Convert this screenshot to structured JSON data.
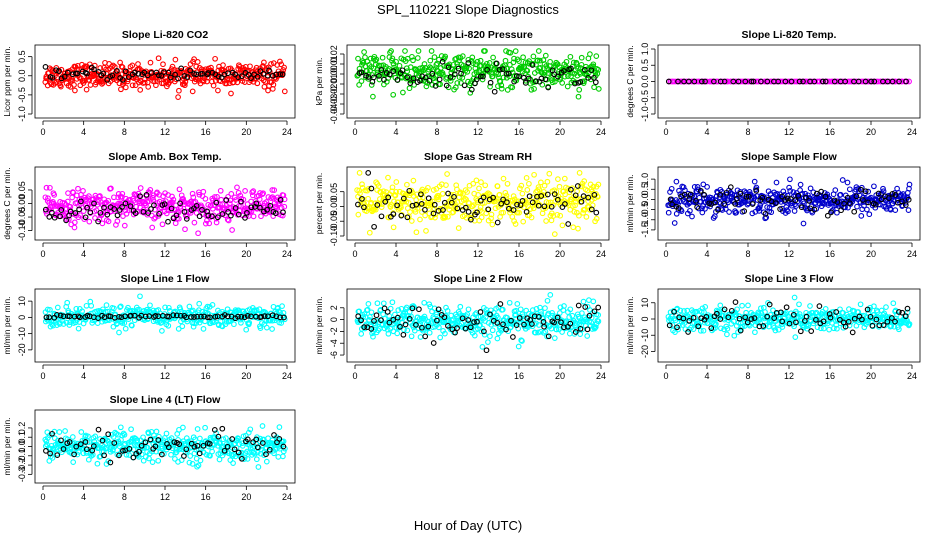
{
  "figure": {
    "title": "SPL_110221  Slope Diagnostics",
    "xlabel": "Hour of Day (UTC)"
  },
  "chart_data": [
    {
      "type": "scatter",
      "title": "Slope Li-820 CO2",
      "ylabel": "Licor ppm per min.",
      "xlim": [
        0,
        24
      ],
      "ylim": [
        -1,
        0.7
      ],
      "xticks": [
        0,
        4,
        8,
        12,
        16,
        20,
        24
      ],
      "yticks": [
        -1.0,
        -0.5,
        0.0,
        0.5
      ],
      "yticklabels": [
        "-1.0",
        "-0.5",
        "0.0",
        "0.5"
      ],
      "series": [
        {
          "name": "",
          "color": "#ff0000",
          "n": 420,
          "center": 0.0,
          "spread": 0.16
        },
        {
          "name": "",
          "color": "#000000",
          "n": 75,
          "center": 0.04,
          "spread": 0.08
        }
      ]
    },
    {
      "type": "scatter",
      "title": "Slope Li-820 Pressure",
      "ylabel": "kPa per min.",
      "xlim": [
        0,
        24
      ],
      "ylim": [
        -0.04,
        0.025
      ],
      "xticks": [
        0,
        4,
        8,
        12,
        16,
        20,
        24
      ],
      "yticks": [
        -0.04,
        -0.03,
        -0.02,
        -0.01,
        0.0,
        0.01,
        0.02
      ],
      "yticklabels": [
        "-0.04",
        "-0.03",
        "-0.02",
        "-0.01",
        "0.00",
        "0.01",
        "0.02"
      ],
      "series": [
        {
          "name": "",
          "color": "#00cc00",
          "n": 420,
          "center": 0.003,
          "spread": 0.009
        },
        {
          "name": "",
          "color": "#000000",
          "n": 75,
          "center": -0.002,
          "spread": 0.006
        }
      ]
    },
    {
      "type": "scatter",
      "title": "Slope Li-820 Temp.",
      "ylabel": "degrees C per min.",
      "xlim": [
        0,
        24
      ],
      "ylim": [
        -1,
        1
      ],
      "xticks": [
        0,
        4,
        8,
        12,
        16,
        20,
        24
      ],
      "yticks": [
        -1.0,
        -0.5,
        0.0,
        0.5,
        1.0
      ],
      "yticklabels": [
        "-1.0",
        "-0.5",
        "0.0",
        "0.5",
        "1.0"
      ],
      "series": [
        {
          "name": "",
          "color": "#ff00ff",
          "n": 150,
          "center": 0.0,
          "spread": 0.0
        },
        {
          "name": "",
          "color": "#000000",
          "n": 40,
          "center": 0.0,
          "spread": 0.0
        }
      ]
    },
    {
      "type": "scatter",
      "title": "Slope Amb. Box Temp.",
      "ylabel": "degrees C per min.",
      "xlim": [
        0,
        24
      ],
      "ylim": [
        -0.12,
        0.12
      ],
      "xticks": [
        0,
        4,
        8,
        12,
        16,
        20,
        24
      ],
      "yticks": [
        -0.1,
        -0.05,
        0.0,
        0.05
      ],
      "yticklabels": [
        "-0.10",
        "-0.05",
        "0.00",
        "0.05"
      ],
      "series": [
        {
          "name": "",
          "color": "#ff00ff",
          "n": 420,
          "center": -0.01,
          "spread": 0.03
        },
        {
          "name": "",
          "color": "#000000",
          "n": 75,
          "center": -0.02,
          "spread": 0.02
        }
      ]
    },
    {
      "type": "scatter",
      "title": "Slope Gas Stream RH",
      "ylabel": "percent per min.",
      "xlim": [
        0,
        24
      ],
      "ylim": [
        -0.1,
        0.12
      ],
      "xticks": [
        0,
        4,
        8,
        12,
        16,
        20,
        24
      ],
      "yticks": [
        -0.1,
        -0.05,
        0.0,
        0.05
      ],
      "yticklabels": [
        "-0.10",
        "-0.05",
        "0.00",
        "0.05"
      ],
      "series": [
        {
          "name": "",
          "color": "#ffff00",
          "n": 420,
          "center": 0.01,
          "spread": 0.04
        },
        {
          "name": "",
          "color": "#000000",
          "n": 75,
          "center": 0.005,
          "spread": 0.035
        }
      ]
    },
    {
      "type": "scatter",
      "title": "Slope Sample Flow",
      "ylabel": "ml/min per min.",
      "xlim": [
        0,
        24
      ],
      "ylim": [
        -1.8,
        1.4
      ],
      "xticks": [
        0,
        4,
        8,
        12,
        16,
        20,
        24
      ],
      "yticks": [
        -1.5,
        -1.0,
        -0.5,
        0.0,
        0.5,
        1.0
      ],
      "yticklabels": [
        "-1.5",
        "-1.0",
        "-0.5",
        "0.0",
        "0.5",
        "1.0"
      ],
      "series": [
        {
          "name": "",
          "color": "#0000cc",
          "n": 420,
          "center": 0.0,
          "spread": 0.35
        },
        {
          "name": "",
          "color": "#000000",
          "n": 75,
          "center": -0.05,
          "spread": 0.25
        }
      ]
    },
    {
      "type": "scatter",
      "title": "Slope Line 1 Flow",
      "ylabel": "ml/min per min.",
      "xlim": [
        0,
        24
      ],
      "ylim": [
        -25,
        15
      ],
      "xticks": [
        0,
        4,
        8,
        12,
        16,
        20,
        24
      ],
      "yticks": [
        -20,
        -10,
        0,
        10
      ],
      "yticklabels": [
        "-20",
        "-10",
        "0",
        "10"
      ],
      "series": [
        {
          "name": "",
          "color": "#00ffff",
          "n": 380,
          "center": 0.5,
          "spread": 3.5
        },
        {
          "name": "",
          "color": "#000000",
          "n": 70,
          "center": 0.5,
          "spread": 0.4
        }
      ]
    },
    {
      "type": "scatter",
      "title": "Slope Line 2 Flow",
      "ylabel": "ml/min per min.",
      "xlim": [
        0,
        24
      ],
      "ylim": [
        -6.5,
        4.5
      ],
      "xticks": [
        0,
        4,
        8,
        12,
        16,
        20,
        24
      ],
      "yticks": [
        -6,
        -4,
        -2,
        0,
        2
      ],
      "yticklabels": [
        "-6",
        "-4",
        "-2",
        "0",
        "2"
      ],
      "series": [
        {
          "name": "",
          "color": "#00ffff",
          "n": 420,
          "center": -0.3,
          "spread": 1.4
        },
        {
          "name": "",
          "color": "#000000",
          "n": 75,
          "center": -0.5,
          "spread": 1.5
        }
      ]
    },
    {
      "type": "scatter",
      "title": "Slope Line 3 Flow",
      "ylabel": "ml/min per min.",
      "xlim": [
        0,
        24
      ],
      "ylim": [
        -24,
        16
      ],
      "xticks": [
        0,
        4,
        8,
        12,
        16,
        20,
        24
      ],
      "yticks": [
        -20,
        -10,
        0,
        10
      ],
      "yticklabels": [
        "-20",
        "-10",
        "0",
        "10"
      ],
      "series": [
        {
          "name": "",
          "color": "#00ffff",
          "n": 400,
          "center": 0.0,
          "spread": 4.0
        },
        {
          "name": "",
          "color": "#000000",
          "n": 70,
          "center": 0.0,
          "spread": 3.5
        }
      ]
    },
    {
      "type": "scatter",
      "title": "Slope Line 4 (LT) Flow",
      "ylabel": "ml/min per min.",
      "xlim": [
        0,
        24
      ],
      "ylim": [
        -0.35,
        0.35
      ],
      "xticks": [
        0,
        4,
        8,
        12,
        16,
        20,
        24
      ],
      "yticks": [
        -0.3,
        -0.2,
        -0.1,
        0.0,
        0.1,
        0.2
      ],
      "yticklabels": [
        "-0.3",
        "-0.2",
        "-0.1",
        "0.0",
        "0.1",
        "0.2"
      ],
      "series": [
        {
          "name": "",
          "color": "#00ffff",
          "n": 420,
          "center": 0.0,
          "spread": 0.08
        },
        {
          "name": "",
          "color": "#000000",
          "n": 70,
          "center": 0.0,
          "spread": 0.07
        }
      ]
    }
  ]
}
